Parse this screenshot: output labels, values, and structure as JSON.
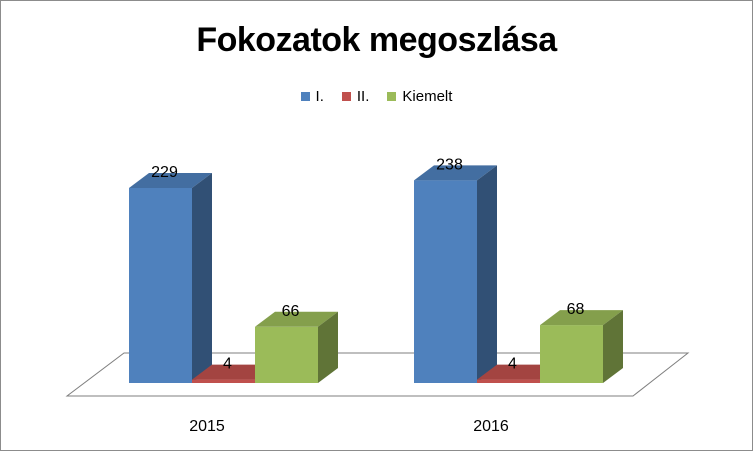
{
  "chart_data": {
    "type": "bar",
    "title": "Fokozatok megoszlása",
    "categories": [
      "2015",
      "2016"
    ],
    "series": [
      {
        "name": "I.",
        "values": [
          229,
          238
        ],
        "color": "#4f81bd"
      },
      {
        "name": "II.",
        "values": [
          4,
          4
        ],
        "color": "#c0504d"
      },
      {
        "name": "Kiemelt",
        "values": [
          66,
          68
        ],
        "color": "#9bbb59"
      }
    ],
    "xlabel": "",
    "ylabel": "",
    "ylim": [
      0,
      250
    ],
    "legend_position": "top",
    "grid": false,
    "data_labels": true,
    "style": "3d-clustered-column"
  }
}
